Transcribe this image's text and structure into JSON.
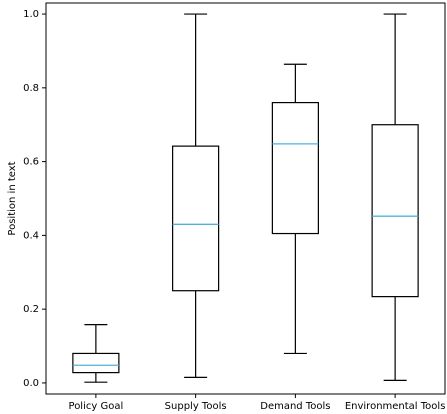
{
  "chart_data": {
    "type": "boxplot",
    "title": "",
    "xlabel": "",
    "ylabel": "Position in text",
    "ylim": [
      -0.03,
      1.03
    ],
    "yticks": [
      0.0,
      0.2,
      0.4,
      0.6,
      0.8,
      1.0
    ],
    "ytick_labels": [
      "0.0",
      "0.2",
      "0.4",
      "0.6",
      "0.8",
      "1.0"
    ],
    "grid": false,
    "categories": [
      "Policy Goal",
      "Supply Tools",
      "Demand Tools",
      "Environmental Tools"
    ],
    "boxes": [
      {
        "category": "Policy Goal",
        "whislo": 0.002,
        "q1": 0.028,
        "med": 0.048,
        "q3": 0.08,
        "whishi": 0.158
      },
      {
        "category": "Supply Tools",
        "whislo": 0.015,
        "q1": 0.25,
        "med": 0.43,
        "q3": 0.642,
        "whishi": 1.0
      },
      {
        "category": "Demand Tools",
        "whislo": 0.08,
        "q1": 0.405,
        "med": 0.648,
        "q3": 0.76,
        "whishi": 0.864
      },
      {
        "category": "Environmental Tools",
        "whislo": 0.007,
        "q1": 0.234,
        "med": 0.452,
        "q3": 0.7,
        "whishi": 1.0
      }
    ],
    "colors": {
      "box": "#000000",
      "median": "#4fb3d9",
      "axes": "#000000",
      "background": "#ffffff"
    }
  }
}
